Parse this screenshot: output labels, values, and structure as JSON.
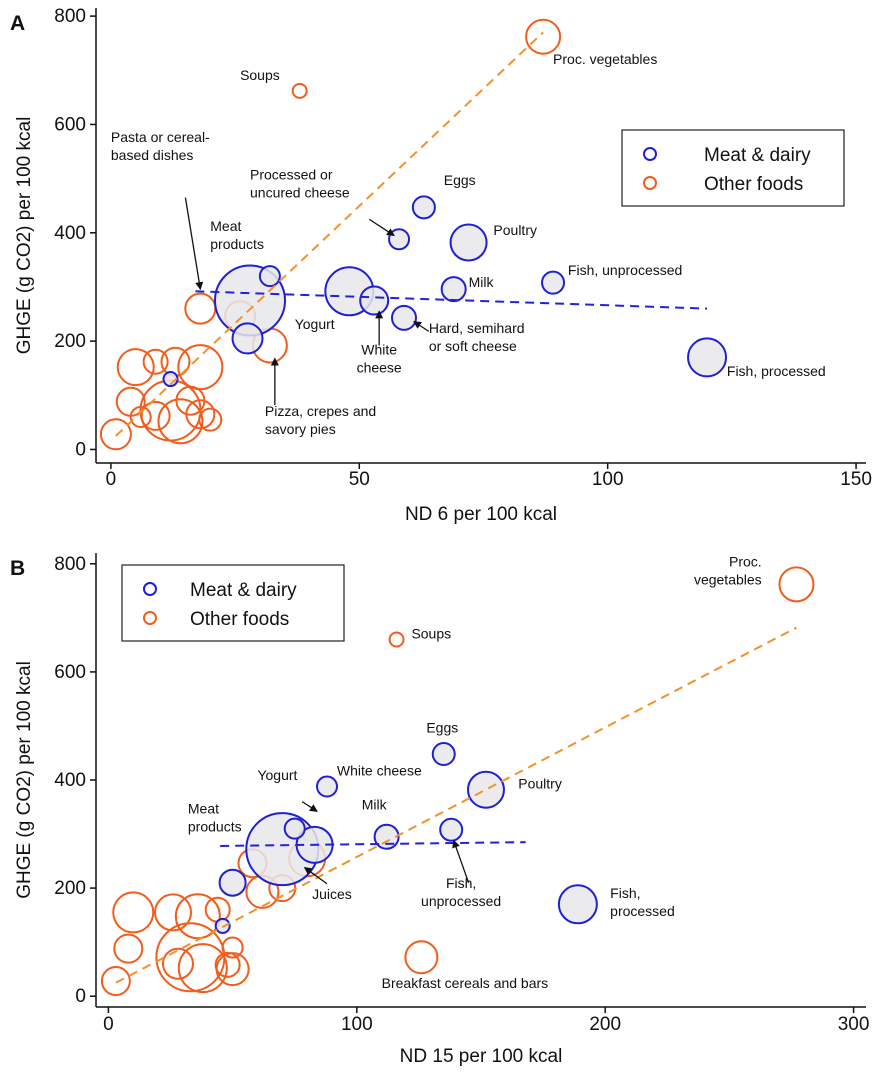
{
  "colors": {
    "meat": "#1f1fd6",
    "other": "#f25c1c",
    "fill_meat": "#e8e8ea",
    "trend_meat": "#2222dd",
    "trend_other": "#f2922c"
  },
  "chart_data": [
    {
      "type": "scatter",
      "panel_label": "A",
      "xlabel": "ND 6 per 100 kcal",
      "ylabel": "GHGE (g CO2) per 100 kcal",
      "xlim": [
        -3,
        152
      ],
      "ylim": [
        -25,
        815
      ],
      "x_ticks": [
        "0",
        "50",
        "100",
        "150"
      ],
      "y_ticks": [
        "0",
        "200",
        "400",
        "600",
        "800"
      ],
      "legend": {
        "position": "right",
        "entries": [
          "Meat & dairy",
          "Other foods"
        ]
      },
      "series": [
        {
          "name": "Meat & dairy",
          "group": "meat",
          "points": [
            {
              "x": 28,
              "y": 275,
              "r": 35
            },
            {
              "x": 32,
              "y": 320,
              "r": 10
            },
            {
              "x": 27.5,
              "y": 205,
              "r": 15
            },
            {
              "x": 48,
              "y": 292,
              "r": 24
            },
            {
              "x": 53,
              "y": 275,
              "r": 14
            },
            {
              "x": 59,
              "y": 243,
              "r": 12
            },
            {
              "x": 58,
              "y": 388,
              "r": 10
            },
            {
              "x": 63,
              "y": 447,
              "r": 11
            },
            {
              "x": 72,
              "y": 382,
              "r": 18
            },
            {
              "x": 69,
              "y": 296,
              "r": 12
            },
            {
              "x": 89,
              "y": 308,
              "r": 11
            },
            {
              "x": 120,
              "y": 170,
              "r": 19
            },
            {
              "x": 12,
              "y": 130,
              "r": 7
            }
          ]
        },
        {
          "name": "Other foods",
          "group": "other",
          "points": [
            {
              "x": 87,
              "y": 762,
              "r": 17
            },
            {
              "x": 38,
              "y": 662,
              "r": 7
            },
            {
              "x": 18,
              "y": 260,
              "r": 15
            },
            {
              "x": 26,
              "y": 246,
              "r": 15
            },
            {
              "x": 32,
              "y": 192,
              "r": 17
            },
            {
              "x": 5,
              "y": 152,
              "r": 18
            },
            {
              "x": 9,
              "y": 162,
              "r": 12
            },
            {
              "x": 13,
              "y": 162,
              "r": 14
            },
            {
              "x": 18,
              "y": 152,
              "r": 22
            },
            {
              "x": 4,
              "y": 88,
              "r": 14
            },
            {
              "x": 12,
              "y": 72,
              "r": 30
            },
            {
              "x": 14,
              "y": 52,
              "r": 22
            },
            {
              "x": 16,
              "y": 90,
              "r": 14
            },
            {
              "x": 20,
              "y": 55,
              "r": 11
            },
            {
              "x": 18,
              "y": 65,
              "r": 14
            },
            {
              "x": 9,
              "y": 62,
              "r": 14
            },
            {
              "x": 6,
              "y": 60,
              "r": 10
            },
            {
              "x": 1,
              "y": 28,
              "r": 15
            }
          ]
        }
      ],
      "trend_lines": [
        {
          "group": "meat",
          "x": [
            17,
            120
          ],
          "y": [
            292,
            260
          ]
        },
        {
          "group": "other",
          "x": [
            1,
            87
          ],
          "y": [
            25,
            770
          ]
        }
      ],
      "annotations": [
        {
          "lines": [
            "Soups"
          ],
          "tx": 26,
          "ty": 682,
          "anchor": "start"
        },
        {
          "lines": [
            "Proc. vegetables"
          ],
          "tx": 89,
          "ty": 712,
          "anchor": "start"
        },
        {
          "lines": [
            "Pasta or cereal-",
            "based dishes"
          ],
          "tx": 0,
          "ty": 568,
          "anchor": "start",
          "arrow": [
            [
              15,
              465
            ],
            [
              18,
              296
            ]
          ]
        },
        {
          "lines": [
            "Meat",
            "products"
          ],
          "tx": 20,
          "ty": 403,
          "anchor": "start"
        },
        {
          "lines": [
            "Processed or",
            "uncured cheese"
          ],
          "tx": 28,
          "ty": 498,
          "anchor": "start",
          "arrow": [
            [
              52,
              425
            ],
            [
              57,
              395
            ]
          ]
        },
        {
          "lines": [
            "Eggs"
          ],
          "tx": 67,
          "ty": 488,
          "anchor": "start"
        },
        {
          "lines": [
            "Poultry"
          ],
          "tx": 77,
          "ty": 396,
          "anchor": "start"
        },
        {
          "lines": [
            "Fish, unprocessed"
          ],
          "tx": 92,
          "ty": 322,
          "anchor": "start"
        },
        {
          "lines": [
            "Milk"
          ],
          "tx": 72,
          "ty": 300,
          "anchor": "start"
        },
        {
          "lines": [
            "Yogurt"
          ],
          "tx": 37,
          "ty": 222,
          "anchor": "start"
        },
        {
          "lines": [
            "White",
            "cheese"
          ],
          "tx": 54,
          "ty": 175,
          "anchor": "middle",
          "arrow": [
            [
              54,
              192
            ],
            [
              54,
              255
            ]
          ]
        },
        {
          "lines": [
            "Hard, semihard",
            "or soft cheese"
          ],
          "tx": 64,
          "ty": 215,
          "anchor": "start",
          "arrow": [
            [
              64,
              218
            ],
            [
              61,
              236
            ]
          ]
        },
        {
          "lines": [
            "Fish, processed"
          ],
          "tx": 124,
          "ty": 136,
          "anchor": "start"
        },
        {
          "lines": [
            "Pizza, crepes and",
            "savory pies"
          ],
          "tx": 31,
          "ty": 62,
          "anchor": "start",
          "arrow": [
            [
              33,
              82
            ],
            [
              33,
              168
            ]
          ]
        }
      ]
    },
    {
      "type": "scatter",
      "panel_label": "B",
      "xlabel": "ND 15 per 100 kcal",
      "ylabel": "GHGE (g CO2) per 100 kcal",
      "xlim": [
        -5,
        305
      ],
      "ylim": [
        -20,
        820
      ],
      "x_ticks": [
        "0",
        "100",
        "200",
        "300"
      ],
      "y_ticks": [
        "0",
        "200",
        "400",
        "600",
        "800"
      ],
      "legend": {
        "position": "top-left",
        "entries": [
          "Meat & dairy",
          "Other foods"
        ]
      },
      "series": [
        {
          "name": "Meat & dairy",
          "group": "meat",
          "points": [
            {
              "x": 70,
              "y": 272,
              "r": 36
            },
            {
              "x": 83,
              "y": 280,
              "r": 18
            },
            {
              "x": 75,
              "y": 310,
              "r": 10
            },
            {
              "x": 88,
              "y": 388,
              "r": 10
            },
            {
              "x": 135,
              "y": 448,
              "r": 11
            },
            {
              "x": 152,
              "y": 382,
              "r": 18
            },
            {
              "x": 112,
              "y": 295,
              "r": 12
            },
            {
              "x": 138,
              "y": 308,
              "r": 11
            },
            {
              "x": 189,
              "y": 170,
              "r": 19
            },
            {
              "x": 50,
              "y": 210,
              "r": 13
            },
            {
              "x": 46,
              "y": 130,
              "r": 7
            }
          ]
        },
        {
          "name": "Other foods",
          "group": "other",
          "points": [
            {
              "x": 277,
              "y": 762,
              "r": 17
            },
            {
              "x": 116,
              "y": 660,
              "r": 7
            },
            {
              "x": 126,
              "y": 72,
              "r": 16
            },
            {
              "x": 58,
              "y": 246,
              "r": 14
            },
            {
              "x": 62,
              "y": 193,
              "r": 16
            },
            {
              "x": 70,
              "y": 200,
              "r": 13
            },
            {
              "x": 80,
              "y": 255,
              "r": 18
            },
            {
              "x": 10,
              "y": 155,
              "r": 20
            },
            {
              "x": 26,
              "y": 155,
              "r": 18
            },
            {
              "x": 36,
              "y": 148,
              "r": 22
            },
            {
              "x": 44,
              "y": 160,
              "r": 12
            },
            {
              "x": 8,
              "y": 88,
              "r": 14
            },
            {
              "x": 33,
              "y": 72,
              "r": 34
            },
            {
              "x": 38,
              "y": 52,
              "r": 24
            },
            {
              "x": 50,
              "y": 90,
              "r": 10
            },
            {
              "x": 50,
              "y": 50,
              "r": 16
            },
            {
              "x": 48,
              "y": 58,
              "r": 12
            },
            {
              "x": 28,
              "y": 60,
              "r": 15
            },
            {
              "x": 3,
              "y": 28,
              "r": 14
            }
          ]
        }
      ],
      "trend_lines": [
        {
          "group": "meat",
          "x": [
            45,
            168
          ],
          "y": [
            278,
            285
          ]
        },
        {
          "group": "other",
          "x": [
            3,
            277
          ],
          "y": [
            25,
            682
          ]
        }
      ],
      "annotations": [
        {
          "lines": [
            "Proc.",
            "vegetables"
          ],
          "tx": 263,
          "ty": 795,
          "anchor": "end"
        },
        {
          "lines": [
            "Soups"
          ],
          "tx": 122,
          "ty": 662,
          "anchor": "start"
        },
        {
          "lines": [
            "Eggs"
          ],
          "tx": 128,
          "ty": 488,
          "anchor": "start"
        },
        {
          "lines": [
            "Poultry"
          ],
          "tx": 165,
          "ty": 384,
          "anchor": "start"
        },
        {
          "lines": [
            "White cheese"
          ],
          "tx": 92,
          "ty": 408,
          "anchor": "start"
        },
        {
          "lines": [
            "Yogurt"
          ],
          "tx": 60,
          "ty": 400,
          "anchor": "start",
          "arrow": [
            [
              78,
              360
            ],
            [
              84,
              342
            ]
          ]
        },
        {
          "lines": [
            "Meat",
            "products"
          ],
          "tx": 32,
          "ty": 338,
          "anchor": "start"
        },
        {
          "lines": [
            "Milk"
          ],
          "tx": 102,
          "ty": 345,
          "anchor": "start"
        },
        {
          "lines": [
            "Fish,",
            "unprocessed"
          ],
          "tx": 142,
          "ty": 200,
          "anchor": "middle",
          "arrow": [
            [
              145,
              210
            ],
            [
              139,
              288
            ]
          ]
        },
        {
          "lines": [
            "Juices"
          ],
          "tx": 82,
          "ty": 180,
          "anchor": "start",
          "arrow": [
            [
              88,
              208
            ],
            [
              79,
              238
            ]
          ]
        },
        {
          "lines": [
            "Fish,",
            "processed"
          ],
          "tx": 202,
          "ty": 182,
          "anchor": "start"
        },
        {
          "lines": [
            "Breakfast cereals and bars"
          ],
          "tx": 110,
          "ty": 15,
          "anchor": "start"
        }
      ]
    }
  ]
}
